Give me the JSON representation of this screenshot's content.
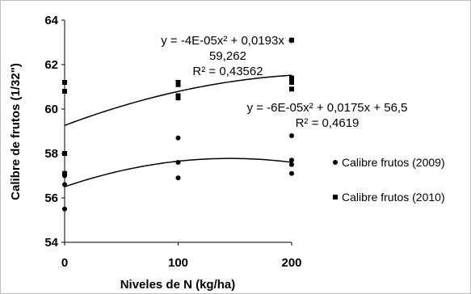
{
  "chart_data": {
    "type": "scatter",
    "xlabel": "Niveles de N (kg/ha)",
    "ylabel": "Calibre de frutos (1/32\")",
    "xlim": [
      0,
      200
    ],
    "ylim": [
      54,
      64
    ],
    "x_ticks": [
      "0",
      "100",
      "200"
    ],
    "y_ticks": [
      "54",
      "56",
      "58",
      "60",
      "62",
      "64"
    ],
    "grid": false,
    "legend_position": "right",
    "series": [
      {
        "name": "Calibre frutos (2009)",
        "marker": "circle",
        "color": "#000000",
        "points": [
          [
            0,
            56.6
          ],
          [
            0,
            55.5
          ],
          [
            0,
            57.0
          ],
          [
            100,
            58.7
          ],
          [
            100,
            57.6
          ],
          [
            100,
            56.9
          ],
          [
            200,
            58.8
          ],
          [
            200,
            57.7
          ],
          [
            200,
            57.5
          ],
          [
            200,
            57.1
          ]
        ],
        "trendline": {
          "a": -6e-05,
          "b": 0.0175,
          "c": 56.5
        }
      },
      {
        "name": "Calibre frutos (2010)",
        "marker": "square",
        "color": "#000000",
        "points": [
          [
            0,
            61.2
          ],
          [
            0,
            60.8
          ],
          [
            0,
            58.0
          ],
          [
            0,
            57.1
          ],
          [
            100,
            61.2
          ],
          [
            100,
            61.1
          ],
          [
            100,
            60.6
          ],
          [
            100,
            60.5
          ],
          [
            200,
            63.1
          ],
          [
            200,
            61.4
          ],
          [
            200,
            61.2
          ],
          [
            200,
            60.9
          ]
        ],
        "trendline": {
          "a": -4e-05,
          "b": 0.0193,
          "c": 59.262
        }
      }
    ],
    "annotations": [
      {
        "lines": [
          "y = -4E-05x² + 0,0193x +",
          "59,262",
          "R² = 0,43562"
        ]
      },
      {
        "lines": [
          "y = -6E-05x² + 0,0175x + 56,5",
          "R² = 0,4619"
        ]
      }
    ]
  }
}
